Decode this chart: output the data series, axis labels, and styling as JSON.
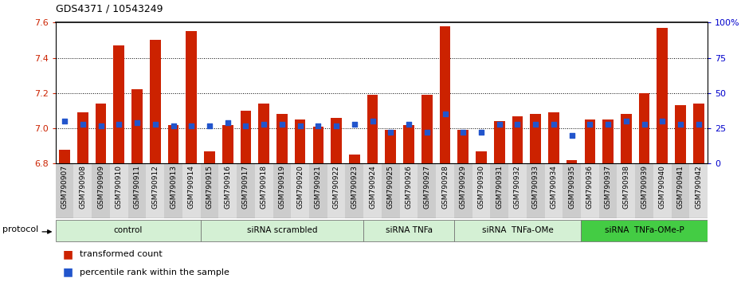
{
  "title": "GDS4371 / 10543249",
  "samples": [
    "GSM790907",
    "GSM790908",
    "GSM790909",
    "GSM790910",
    "GSM790911",
    "GSM790912",
    "GSM790913",
    "GSM790914",
    "GSM790915",
    "GSM790916",
    "GSM790917",
    "GSM790918",
    "GSM790919",
    "GSM790920",
    "GSM790921",
    "GSM790922",
    "GSM790923",
    "GSM790924",
    "GSM790925",
    "GSM790926",
    "GSM790927",
    "GSM790928",
    "GSM790929",
    "GSM790930",
    "GSM790931",
    "GSM790932",
    "GSM790933",
    "GSM790934",
    "GSM790935",
    "GSM790936",
    "GSM790937",
    "GSM790938",
    "GSM790939",
    "GSM790940",
    "GSM790941",
    "GSM790942"
  ],
  "red_values": [
    6.88,
    7.09,
    7.14,
    7.47,
    7.22,
    7.5,
    7.02,
    7.55,
    6.87,
    7.02,
    7.1,
    7.14,
    7.08,
    7.05,
    7.01,
    7.06,
    6.85,
    7.19,
    6.99,
    7.02,
    7.19,
    7.58,
    6.99,
    6.87,
    7.04,
    7.07,
    7.08,
    7.09,
    6.82,
    7.05,
    7.05,
    7.08,
    7.2,
    7.57,
    7.13,
    7.14
  ],
  "blue_values": [
    30,
    28,
    27,
    28,
    29,
    28,
    27,
    27,
    27,
    29,
    27,
    28,
    28,
    27,
    27,
    27,
    28,
    30,
    22,
    28,
    22,
    35,
    22,
    22,
    28,
    28,
    28,
    28,
    20,
    28,
    28,
    30,
    28,
    30,
    28,
    28
  ],
  "groups_info": [
    {
      "start": 0,
      "end": 7,
      "name": "control",
      "color": "#d4f0d4"
    },
    {
      "start": 8,
      "end": 16,
      "name": "siRNA scrambled",
      "color": "#d4f0d4"
    },
    {
      "start": 17,
      "end": 21,
      "name": "siRNA TNFa",
      "color": "#d4f0d4"
    },
    {
      "start": 22,
      "end": 28,
      "name": "siRNA  TNFa-OMe",
      "color": "#d4f0d4"
    },
    {
      "start": 29,
      "end": 35,
      "name": "siRNA  TNFa-OMe-P",
      "color": "#44cc44"
    }
  ],
  "ylim_left": [
    6.8,
    7.6
  ],
  "ylim_right": [
    0,
    100
  ],
  "yticks_left": [
    6.8,
    7.0,
    7.2,
    7.4,
    7.6
  ],
  "yticks_right": [
    0,
    25,
    50,
    75,
    100
  ],
  "bar_color": "#cc2200",
  "blue_color": "#2255cc",
  "grid_lines": [
    7.0,
    7.2,
    7.4
  ],
  "col_colors": [
    "#cccccc",
    "#dedede"
  ]
}
